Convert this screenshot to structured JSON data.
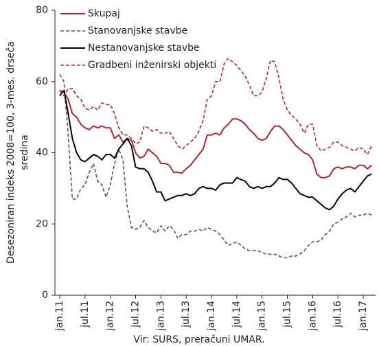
{
  "chart_data": {
    "type": "line",
    "ylabel": [
      "Desezoniran indeks 2008=100, 3-mes. drseča",
      "sredina"
    ],
    "source": "Vir: SURS, preračuni UMAR.",
    "categories": [
      "jan.11",
      null,
      null,
      null,
      null,
      null,
      "jul.11",
      null,
      null,
      null,
      null,
      null,
      "jan.12",
      null,
      null,
      null,
      null,
      null,
      "jul.12",
      null,
      null,
      null,
      null,
      null,
      "jan.13",
      null,
      null,
      null,
      null,
      null,
      "jul.13",
      null,
      null,
      null,
      null,
      null,
      "jan.14",
      null,
      null,
      null,
      null,
      null,
      "jul.14",
      null,
      null,
      null,
      null,
      null,
      "jan.15",
      null,
      null,
      null,
      null,
      null,
      "jul.15",
      null,
      null,
      null,
      null,
      null,
      "jan.16",
      null,
      null,
      null,
      null,
      null,
      "jul.16",
      null,
      null,
      null,
      null,
      null,
      "jan.17",
      null,
      null
    ],
    "ylim": [
      0,
      80
    ],
    "yticks": [
      0,
      20,
      40,
      60,
      80
    ],
    "grid": false,
    "legend": "top-left",
    "series": [
      {
        "name": "Skupaj",
        "color": "#b5262b",
        "dashed": false,
        "values": [
          57.5,
          57,
          55,
          51,
          50,
          48,
          47,
          46.5,
          47.5,
          47,
          47.5,
          47,
          47,
          44,
          45,
          43,
          44,
          43.5,
          40,
          38.5,
          39,
          41,
          40,
          39,
          37,
          37,
          36.5,
          34.5,
          34.5,
          34.3,
          35.5,
          36.5,
          38,
          39.5,
          41,
          45,
          45,
          45.5,
          45,
          47,
          48,
          49.5,
          49.5,
          49,
          48,
          46.5,
          45.5,
          44,
          43.5,
          44,
          46,
          47.5,
          47.5,
          46.5,
          45,
          43.5,
          42,
          41,
          40,
          39.5,
          38,
          34,
          33,
          33,
          33.5,
          35.5,
          36,
          35.5,
          36,
          36,
          35.5,
          36.5,
          36.5,
          35.5,
          36.5
        ]
      },
      {
        "name": "Stanovanjske stavbe",
        "color": "#555555",
        "dashed": true,
        "values": [
          62,
          60,
          45,
          27,
          27,
          30,
          31,
          34.5,
          37,
          32,
          31,
          27.5,
          31,
          37,
          41,
          38,
          25,
          19,
          18.5,
          19,
          21,
          19,
          18,
          17.5,
          19.5,
          18,
          19.5,
          18.5,
          16,
          17,
          17,
          18,
          18,
          18.5,
          18,
          19,
          18.5,
          18,
          17,
          15.5,
          14,
          14.5,
          15,
          14,
          13,
          12.5,
          12.5,
          12.5,
          12,
          11.5,
          11.5,
          11.5,
          11,
          10.5,
          10.5,
          11,
          11,
          11.5,
          12.5,
          14,
          15,
          15,
          15.5,
          17,
          18,
          20,
          20.5,
          21.5,
          22,
          23,
          22,
          22.5,
          22.5,
          23,
          22.5
        ]
      },
      {
        "name": "Nestanovanjske stavbe",
        "color": "#000000",
        "dashed": false,
        "values": [
          56,
          57.5,
          51,
          44,
          40,
          38,
          37.5,
          38.5,
          39.5,
          39,
          38,
          39.5,
          39.5,
          38.5,
          41,
          42.5,
          44,
          42,
          36,
          35.5,
          35.5,
          34.5,
          32,
          29,
          29,
          26.5,
          27,
          27.5,
          28,
          28,
          28.5,
          28,
          28.5,
          30,
          30.5,
          30,
          30,
          29.5,
          31,
          31.5,
          31.5,
          31.5,
          33,
          32.5,
          32,
          30.5,
          30,
          30.5,
          30,
          30.5,
          30.5,
          31.5,
          33,
          32.5,
          32.5,
          31.5,
          30,
          28.5,
          28,
          27.5,
          27.5,
          26.5,
          25.5,
          24.5,
          24,
          25,
          27,
          28.5,
          29.5,
          30,
          29,
          30.5,
          32,
          33.5,
          34
        ]
      },
      {
        "name": "Gradbeni inženirski objekti",
        "color": "#b5262b",
        "dashed": true,
        "values": [
          57.5,
          56,
          58,
          58,
          56,
          55,
          52.5,
          52,
          53,
          52,
          54,
          53.5,
          53.5,
          51,
          47,
          45,
          45,
          44,
          42.5,
          43,
          47.5,
          47,
          46,
          46.5,
          45.5,
          45.5,
          46,
          44,
          42,
          41,
          42,
          43,
          44,
          46,
          49,
          55,
          56,
          60,
          60,
          65,
          66.5,
          65.5,
          64.5,
          63,
          61.5,
          59,
          56,
          56,
          57,
          61,
          66,
          65.5,
          61,
          55,
          52,
          50.5,
          49.5,
          48,
          45.5,
          48,
          48,
          42,
          40.5,
          41,
          41.5,
          43,
          43,
          42,
          41.5,
          41,
          40.5,
          41.5,
          41,
          39.5,
          42
        ]
      }
    ]
  }
}
